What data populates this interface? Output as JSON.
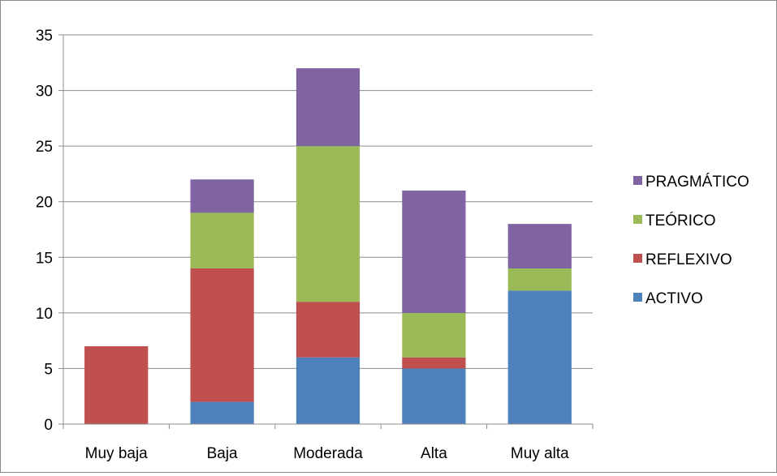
{
  "chart_data": {
    "type": "bar",
    "stacked": true,
    "title": "",
    "xlabel": "",
    "ylabel": "",
    "categories": [
      "Muy baja",
      "Baja",
      "Moderada",
      "Alta",
      "Muy alta"
    ],
    "ylim": [
      0,
      35
    ],
    "yticks": [
      "0",
      "5",
      "10",
      "15",
      "20",
      "25",
      "30",
      "35"
    ],
    "grid": true,
    "legend_position": "right",
    "series": [
      {
        "name": "ACTIVO",
        "color": "#4F81BD",
        "values": [
          0,
          2,
          6,
          5,
          12
        ]
      },
      {
        "name": "REFLEXIVO",
        "color": "#C0504D",
        "values": [
          7,
          12,
          5,
          1,
          0
        ]
      },
      {
        "name": "TEÓRICO",
        "color": "#9BBB59",
        "values": [
          0,
          5,
          14,
          4,
          2
        ]
      },
      {
        "name": "PRAGMÁTICO",
        "color": "#8064A2",
        "values": [
          0,
          3,
          7,
          11,
          4
        ]
      }
    ]
  }
}
